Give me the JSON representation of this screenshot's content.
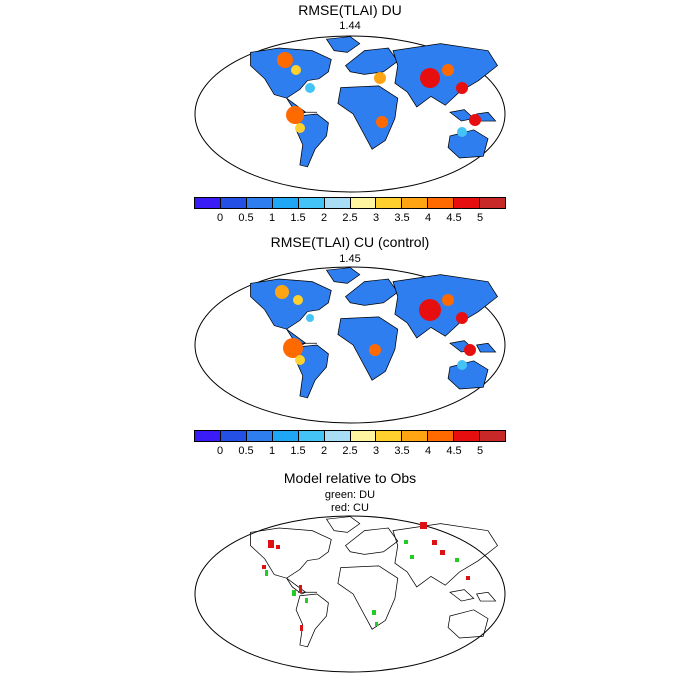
{
  "panels": [
    {
      "title": "RMSE(TLAI) DU",
      "value": "1.44"
    },
    {
      "title": "RMSE(TLAI) CU (control)",
      "value": "1.45"
    }
  ],
  "panel3": {
    "title": "Model relative to Obs",
    "line1": "green: DU",
    "line2": "red: CU"
  },
  "colorbar": {
    "colors": [
      "#3a1df6",
      "#2450e6",
      "#2f7ef0",
      "#1fa6f4",
      "#44c4f6",
      "#a9dcf5",
      "#fff5a0",
      "#ffd02e",
      "#ffa514",
      "#ff6a00",
      "#e60e0e",
      "#c82828"
    ],
    "labels": [
      "0",
      "0.5",
      "1",
      "1.5",
      "2",
      "2.5",
      "3",
      "3.5",
      "4",
      "4.5",
      "5"
    ]
  },
  "legend_colors": {
    "du": "#22cc22",
    "cu": "#dd1111"
  }
}
